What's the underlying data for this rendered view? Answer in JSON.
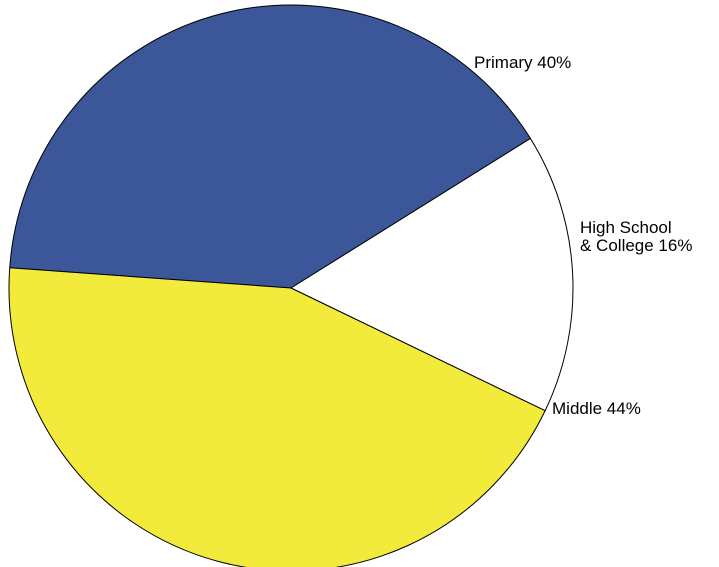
{
  "chart_data": {
    "type": "pie",
    "slices": [
      {
        "label_lines": [
          "Primary 40%"
        ],
        "value": 40,
        "color": "#3b5699"
      },
      {
        "label_lines": [
          "High School",
          "& College 16%"
        ],
        "value": 16,
        "color": "#ffffff"
      },
      {
        "label_lines": [
          "Middle 44%"
        ],
        "value": 44,
        "color": "#f2eb3c"
      }
    ],
    "title": "",
    "legend": "none"
  }
}
